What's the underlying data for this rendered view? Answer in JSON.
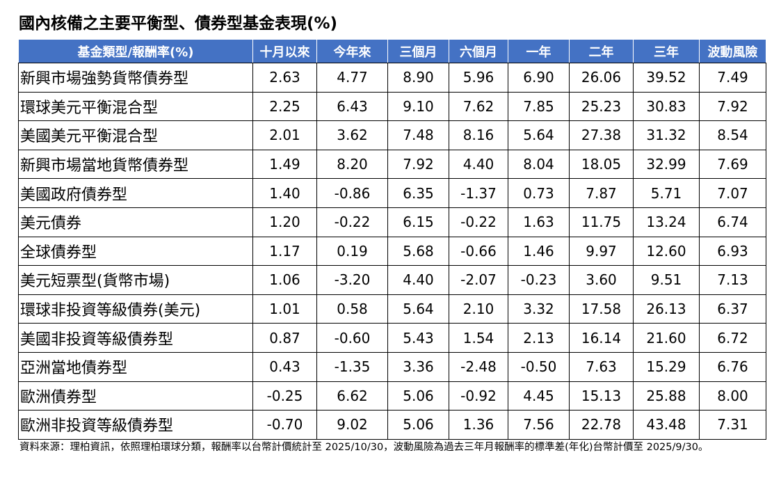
{
  "title": "國內核備之主要平衡型、債券型基金表現(%)",
  "colors": {
    "header_bg": "#4472C4",
    "header_text": "#FFFFFF"
  },
  "table": {
    "headers": [
      "基金類型/報酬率(%)",
      "十月以來",
      "今年來",
      "三個月",
      "六個月",
      "一年",
      "二年",
      "三年",
      "波動風險"
    ],
    "rows": [
      [
        "新興市場強勢貨幣債券型",
        "2.63",
        "4.77",
        "8.90",
        "5.96",
        "6.90",
        "26.06",
        "39.52",
        "7.49"
      ],
      [
        "環球美元平衡混合型",
        "2.25",
        "6.43",
        "9.10",
        "7.62",
        "7.85",
        "25.23",
        "30.83",
        "7.92"
      ],
      [
        "美國美元平衡混合型",
        "2.01",
        "3.62",
        "7.48",
        "8.16",
        "5.64",
        "27.38",
        "31.32",
        "8.54"
      ],
      [
        "新興市場當地貨幣債券型",
        "1.49",
        "8.20",
        "7.92",
        "4.40",
        "8.04",
        "18.05",
        "32.99",
        "7.69"
      ],
      [
        "美國政府債券型",
        "1.40",
        "-0.86",
        "6.35",
        "-1.37",
        "0.73",
        "7.87",
        "5.71",
        "7.07"
      ],
      [
        "美元債券",
        "1.20",
        "-0.22",
        "6.15",
        "-0.22",
        "1.63",
        "11.75",
        "13.24",
        "6.74"
      ],
      [
        "全球債券型",
        "1.17",
        "0.19",
        "5.68",
        "-0.66",
        "1.46",
        "9.97",
        "12.60",
        "6.93"
      ],
      [
        "美元短票型(貨幣市場)",
        "1.06",
        "-3.20",
        "4.40",
        "-2.07",
        "-0.23",
        "3.60",
        "9.51",
        "7.13"
      ],
      [
        "環球非投資等級債券(美元)",
        "1.01",
        "0.58",
        "5.64",
        "2.10",
        "3.32",
        "17.58",
        "26.13",
        "6.37"
      ],
      [
        "美國非投資等級債券型",
        "0.87",
        "-0.60",
        "5.43",
        "1.54",
        "2.13",
        "16.14",
        "21.60",
        "6.72"
      ],
      [
        "亞洲當地債券型",
        "0.43",
        "-1.35",
        "3.36",
        "-2.48",
        "-0.50",
        "7.63",
        "15.29",
        "6.76"
      ],
      [
        "歐洲債券型",
        "-0.25",
        "6.62",
        "5.06",
        "-0.92",
        "4.45",
        "15.13",
        "25.88",
        "8.00"
      ],
      [
        "歐洲非投資等級債券型",
        "-0.70",
        "9.02",
        "5.06",
        "1.36",
        "7.56",
        "22.78",
        "43.48",
        "7.31"
      ]
    ]
  },
  "footnote": "資料來源：理柏資訊，依照理柏環球分類，報酬率以台幣計價統計至 2025/10/30，波動風險為過去三年月報酬率的標準差(年化)台幣計價至 2025/9/30。"
}
